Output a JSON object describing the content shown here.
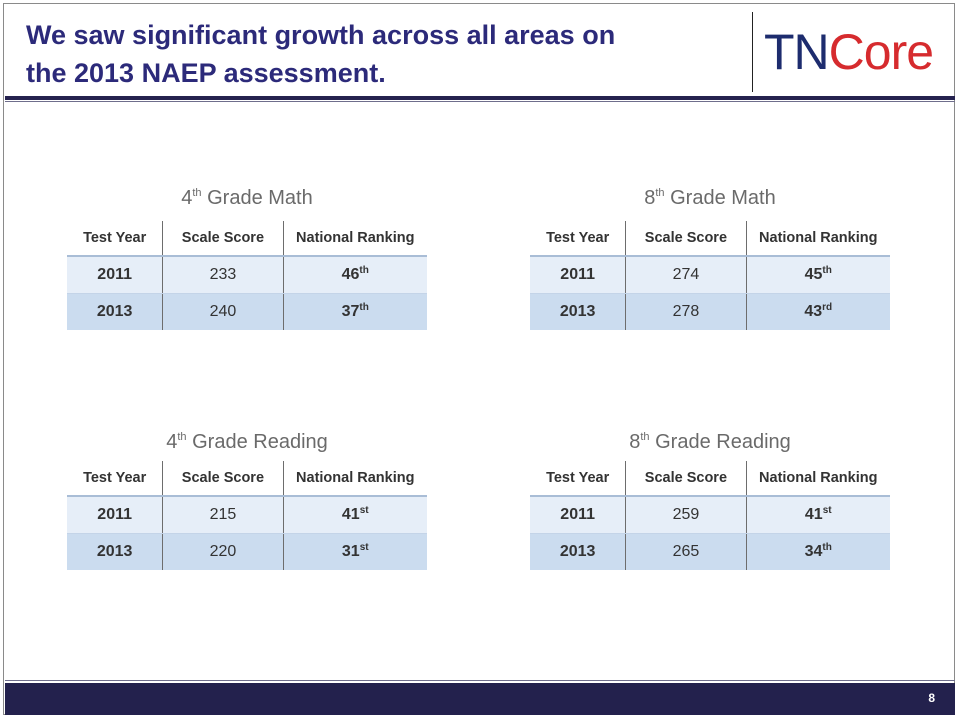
{
  "slide": {
    "title_line1": "We saw significant growth across all areas on",
    "title_line2": "the 2013 NAEP assessment.",
    "page_number": "8"
  },
  "logo": {
    "tn": "TN",
    "core": "Core",
    "colors": {
      "tn": "#1d2c6e",
      "core": "#d62b2e"
    }
  },
  "columns": {
    "year": "Test Year",
    "score": "Scale Score",
    "rank": "National Ranking"
  },
  "tables": [
    {
      "grade": "4",
      "grade_sup": "th",
      "subject": "Grade Math",
      "rows": [
        {
          "year": "2011",
          "score": "233",
          "rank": "46",
          "rank_sup": "th"
        },
        {
          "year": "2013",
          "score": "240",
          "rank": "37",
          "rank_sup": "th"
        }
      ]
    },
    {
      "grade": "8",
      "grade_sup": "th",
      "subject": "Grade Math",
      "rows": [
        {
          "year": "2011",
          "score": "274",
          "rank": "45",
          "rank_sup": "th"
        },
        {
          "year": "2013",
          "score": "278",
          "rank": "43",
          "rank_sup": "rd"
        }
      ]
    },
    {
      "grade": "4",
      "grade_sup": "th",
      "subject": "Grade Reading",
      "rows": [
        {
          "year": "2011",
          "score": "215",
          "rank": "41",
          "rank_sup": "st"
        },
        {
          "year": "2013",
          "score": "220",
          "rank": "31",
          "rank_sup": "st"
        }
      ]
    },
    {
      "grade": "8",
      "grade_sup": "th",
      "subject": "Grade Reading",
      "rows": [
        {
          "year": "2011",
          "score": "259",
          "rank": "41",
          "rank_sup": "st"
        },
        {
          "year": "2013",
          "score": "265",
          "rank": "34",
          "rank_sup": "th"
        }
      ]
    }
  ]
}
